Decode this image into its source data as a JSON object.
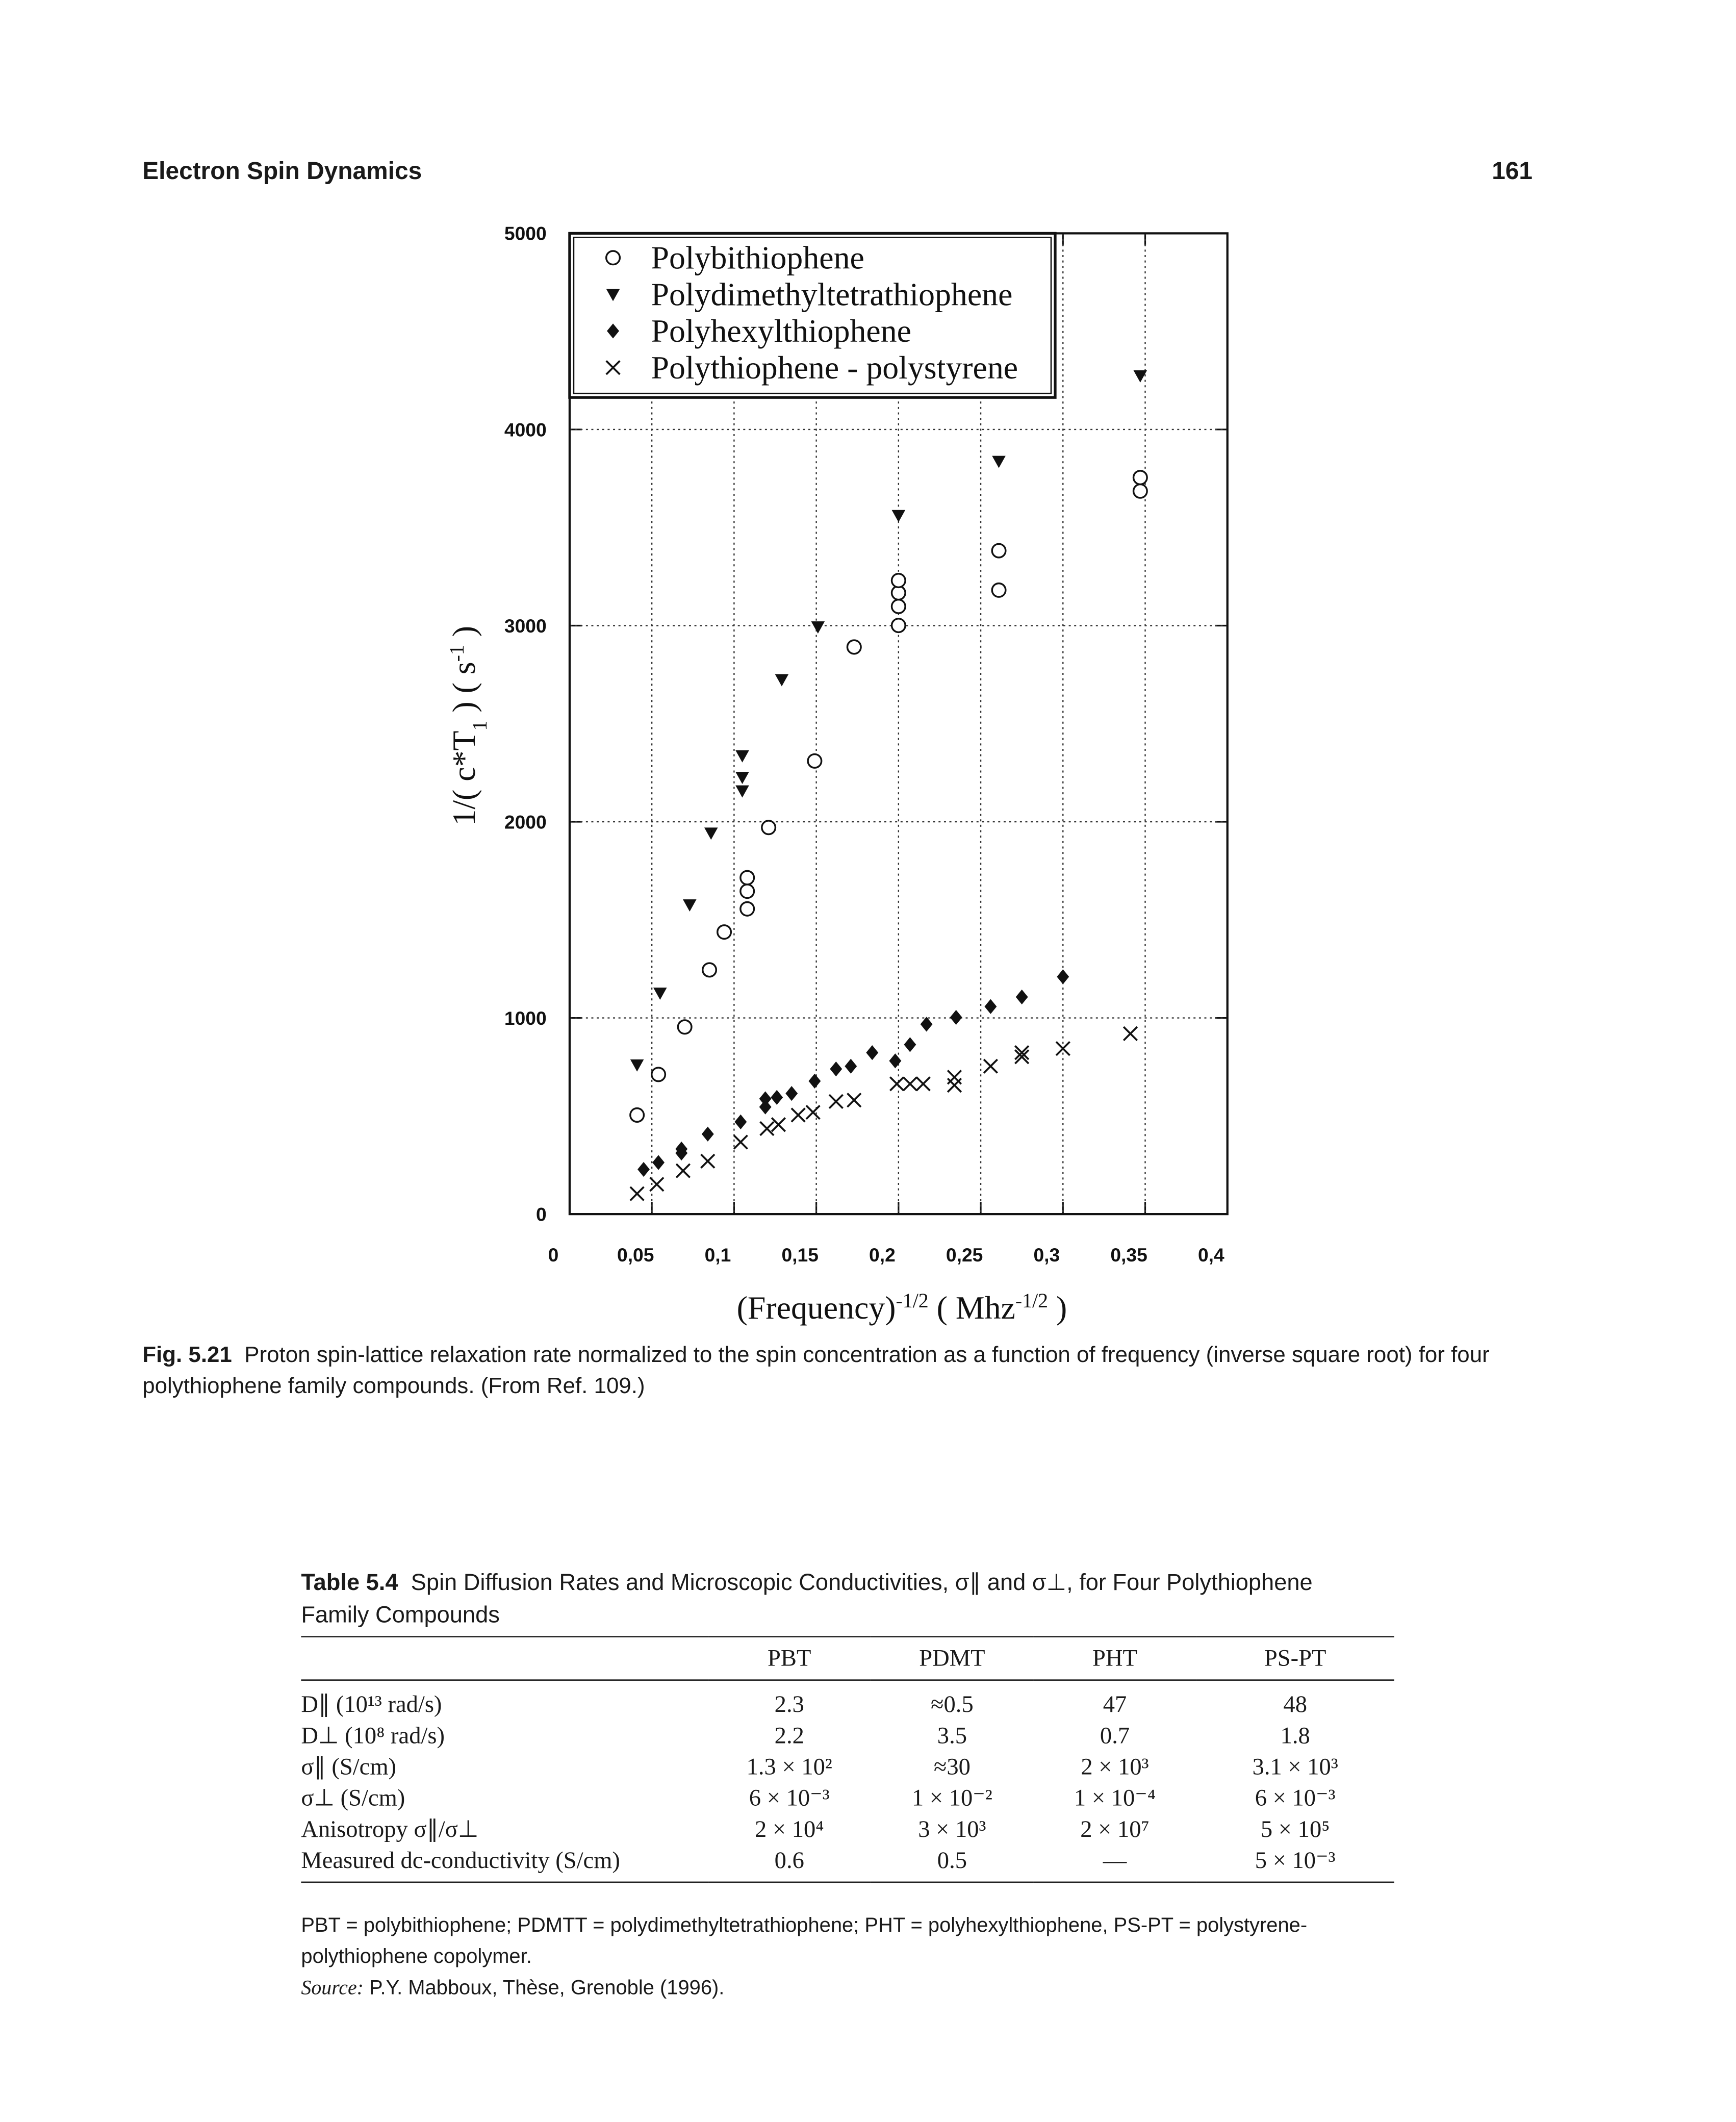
{
  "header": {
    "title": "Electron Spin Dynamics",
    "page": "161"
  },
  "chart_data": {
    "type": "scatter",
    "x_label": [
      "(Frequency)",
      "-1/2",
      " ( Mhz",
      "-1/2",
      " )"
    ],
    "y_label": [
      "1/( c*T",
      "1",
      " ) ( s",
      "-1",
      " )"
    ],
    "xlim": [
      0,
      0.4
    ],
    "xticks": [
      0,
      {
        "value": 0.05,
        "label": "0,05"
      },
      {
        "value": 0.1,
        "label": "0,1"
      },
      {
        "value": 0.15,
        "label": "0,15"
      },
      {
        "value": 0.2,
        "label": "0,2"
      },
      {
        "value": 0.25,
        "label": "0,25"
      },
      {
        "value": 0.3,
        "label": "0,3"
      },
      {
        "value": 0.35,
        "label": "0,35"
      },
      {
        "value": 0.4,
        "label": "0,4"
      }
    ],
    "ylim": [
      0,
      5000
    ],
    "yticks": [
      0,
      1000,
      2000,
      3000,
      4000,
      5000
    ],
    "grid": true,
    "legend": "upper left",
    "series": [
      {
        "name": "Polybithiophene",
        "marker": "circle-open",
        "color": "#111111",
        "x": [
          0.041,
          0.054,
          0.07,
          0.085,
          0.094,
          0.108,
          0.108,
          0.108,
          0.121,
          0.149,
          0.173,
          0.2,
          0.2,
          0.2,
          0.2,
          0.261,
          0.261,
          0.347,
          0.347
        ],
        "values": [
          505,
          712,
          954,
          1245,
          1438,
          1556,
          1646,
          1715,
          1971,
          2310,
          2891,
          3001,
          3098,
          3167,
          3230,
          3181,
          3382,
          3686,
          3755
        ]
      },
      {
        "name": "Polydimethyltetrathiophene",
        "marker": "triangle-down",
        "color": "#111111",
        "x": [
          0.041,
          0.055,
          0.073,
          0.086,
          0.105,
          0.105,
          0.105,
          0.129,
          0.151,
          0.2,
          0.261,
          0.347
        ],
        "values": [
          761,
          1127,
          1577,
          1943,
          2158,
          2227,
          2337,
          2725,
          2994,
          3562,
          3838,
          4274
        ]
      },
      {
        "name": "Polyhexylthiophene",
        "marker": "diamond",
        "color": "#111111",
        "x": [
          0.045,
          0.054,
          0.068,
          0.068,
          0.084,
          0.104,
          0.119,
          0.119,
          0.126,
          0.135,
          0.149,
          0.162,
          0.171,
          0.184,
          0.198,
          0.207,
          0.217,
          0.235,
          0.256,
          0.275,
          0.3
        ],
        "values": [
          228,
          263,
          311,
          332,
          408,
          470,
          546,
          588,
          595,
          615,
          678,
          740,
          754,
          823,
          781,
          864,
          968,
          1003,
          1058,
          1107,
          1210
        ]
      },
      {
        "name": "Polythiophene - polystyrene",
        "marker": "cross",
        "color": "#111111",
        "x": [
          0.041,
          0.053,
          0.069,
          0.084,
          0.104,
          0.12,
          0.127,
          0.139,
          0.148,
          0.162,
          0.173,
          0.199,
          0.207,
          0.215,
          0.234,
          0.234,
          0.256,
          0.275,
          0.275,
          0.3,
          0.341
        ],
        "values": [
          104,
          152,
          221,
          270,
          367,
          436,
          456,
          505,
          519,
          574,
          581,
          664,
          664,
          664,
          698,
          657,
          754,
          823,
          802,
          844,
          920
        ]
      }
    ]
  },
  "figure": {
    "label": "Fig. 5.21",
    "caption": "Proton spin-lattice relaxation rate normalized to the spin concentration as a function of frequency (inverse square root) for four polythiophene family compounds. (From Ref. 109.)"
  },
  "table": {
    "label": "Table 5.4",
    "title": "Spin Diffusion Rates and Microscopic Conductivities, σ∥ and σ⊥, for Four Polythiophene Family Compounds",
    "columns": [
      "PBT",
      "PDMT",
      "PHT",
      "PS-PT"
    ],
    "rows": [
      [
        "D∥ (10¹³ rad/s)",
        "2.3",
        "≈0.5",
        "47",
        "48"
      ],
      [
        "D⊥ (10⁸ rad/s)",
        "2.2",
        "3.5",
        "0.7",
        "1.8"
      ],
      [
        "σ∥ (S/cm)",
        "1.3 × 10²",
        "≈30",
        "2 × 10³",
        "3.1 × 10³"
      ],
      [
        "σ⊥ (S/cm)",
        "6 × 10⁻³",
        "1 × 10⁻²",
        "1 × 10⁻⁴",
        "6 × 10⁻³"
      ],
      [
        "Anisotropy σ∥/σ⊥",
        "2 × 10⁴",
        "3 × 10³",
        "2 × 10⁷",
        "5 × 10⁵"
      ],
      [
        "Measured dc-conductivity (S/cm)",
        "0.6",
        "0.5",
        "—",
        "5 × 10⁻³"
      ]
    ],
    "note": "PBT = polybithiophene; PDMTT = polydimethyltetrathiophene; PHT = polyhexylthiophene, PS-PT = polystyrene-polythiophene copolymer.",
    "source_label": "Source:",
    "source": "P.Y. Mabboux, Thèse, Grenoble (1996)."
  }
}
